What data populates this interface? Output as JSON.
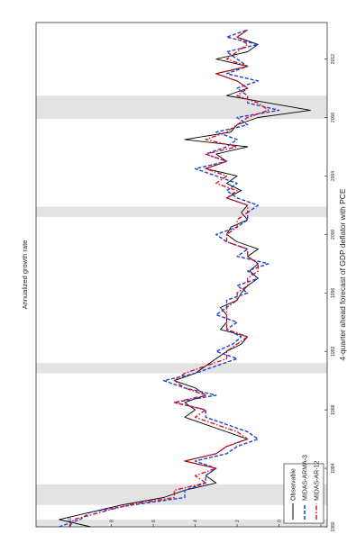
{
  "chart_data": {
    "type": "line",
    "title": "4-quarter ahead forecast of GDP deflator with PCE",
    "xlabel": "",
    "ylabel": "Annualized growth rate",
    "xlim": [
      1980,
      2014.5
    ],
    "ylim": [
      -2.3,
      11.6
    ],
    "x_ticks": [
      1980,
      1984,
      1988,
      1992,
      1996,
      2000,
      2004,
      2008,
      2012
    ],
    "y_ticks": [
      -2,
      0,
      2,
      4,
      6,
      8,
      10
    ],
    "grid": false,
    "legend": {
      "placement": "bottom-left",
      "orientation": "rotated"
    },
    "recessions": [
      [
        1980.0,
        1980.5
      ],
      [
        1981.5,
        1982.9
      ],
      [
        1990.5,
        1991.2
      ],
      [
        2001.2,
        2001.9
      ],
      [
        2007.9,
        2009.5
      ]
    ],
    "x": [
      1980.0,
      1980.5,
      1981.0,
      1981.5,
      1982.0,
      1982.5,
      1983.0,
      1983.5,
      1984.0,
      1984.5,
      1985.0,
      1985.5,
      1986.0,
      1986.5,
      1987.0,
      1987.5,
      1988.0,
      1988.5,
      1989.0,
      1989.5,
      1990.0,
      1990.5,
      1991.0,
      1991.5,
      1992.0,
      1992.5,
      1993.0,
      1993.5,
      1994.0,
      1994.5,
      1995.0,
      1995.5,
      1996.0,
      1996.5,
      1997.0,
      1997.5,
      1998.0,
      1998.5,
      1999.0,
      1999.5,
      2000.0,
      2000.5,
      2001.0,
      2001.5,
      2002.0,
      2002.5,
      2003.0,
      2003.5,
      2004.0,
      2004.5,
      2005.0,
      2005.5,
      2006.0,
      2006.5,
      2007.0,
      2007.5,
      2008.0,
      2008.5,
      2009.0,
      2009.5,
      2010.0,
      2010.5,
      2011.0,
      2011.5,
      2012.0,
      2012.5,
      2013.0,
      2013.5,
      2014.0
    ],
    "series": [
      {
        "name": "Observable",
        "color": "#000000",
        "dash": "solid",
        "values": [
          9.0,
          10.5,
          9.0,
          7.5,
          5.5,
          4.5,
          3.0,
          3.5,
          3.0,
          4.5,
          3.0,
          2.5,
          1.5,
          2.5,
          3.5,
          4.5,
          4.0,
          4.5,
          3.5,
          4.0,
          5.0,
          4.0,
          3.5,
          3.0,
          2.5,
          1.8,
          1.5,
          2.8,
          2.5,
          2.5,
          2.8,
          2.0,
          1.8,
          1.5,
          1.0,
          1.4,
          1.0,
          1.5,
          1.0,
          2.0,
          2.5,
          2.3,
          1.5,
          1.8,
          1.5,
          2.5,
          1.8,
          2.5,
          2.0,
          3.5,
          2.5,
          3.0,
          1.5,
          4.5,
          2.3,
          2.0,
          1.0,
          -1.5,
          0.5,
          2.5,
          1.5,
          2.0,
          3.0,
          1.5,
          3.0,
          1.5,
          1.0,
          2.0,
          1.5
        ]
      },
      {
        "name": "MIDAS-ARMA-3",
        "color": "#1f3fd6",
        "dash": "dash",
        "values": [
          10.5,
          9.5,
          9.0,
          7.0,
          4.5,
          4.5,
          3.5,
          3.5,
          3.0,
          4.0,
          2.5,
          2.0,
          1.0,
          1.5,
          2.5,
          3.5,
          3.5,
          5.0,
          3.0,
          4.5,
          5.5,
          4.0,
          3.0,
          2.0,
          3.0,
          2.2,
          1.8,
          2.5,
          2.0,
          3.0,
          2.5,
          2.5,
          1.5,
          2.0,
          1.0,
          1.5,
          0.5,
          2.0,
          1.5,
          2.5,
          3.0,
          2.0,
          1.5,
          1.5,
          1.0,
          2.0,
          2.5,
          2.0,
          3.0,
          4.0,
          2.5,
          3.5,
          2.5,
          2.0,
          3.0,
          1.5,
          2.0,
          0.0,
          1.5,
          1.5,
          2.0,
          1.0,
          2.5,
          1.5,
          2.0,
          2.5,
          1.0,
          2.5,
          1.5
        ]
      },
      {
        "name": "MIDAS-AR-12",
        "color": "#e0101e",
        "dash": "dashdot",
        "values": [
          10.0,
          9.8,
          8.5,
          7.2,
          5.0,
          5.0,
          3.5,
          4.0,
          3.0,
          4.5,
          3.0,
          2.5,
          1.5,
          2.0,
          3.0,
          4.0,
          3.5,
          5.0,
          3.5,
          4.5,
          5.0,
          4.5,
          3.5,
          2.5,
          2.5,
          2.0,
          1.5,
          2.5,
          2.5,
          2.5,
          2.5,
          2.0,
          2.0,
          1.5,
          1.5,
          1.0,
          1.0,
          1.5,
          1.5,
          2.5,
          2.5,
          2.0,
          2.0,
          1.5,
          1.5,
          2.5,
          2.0,
          3.0,
          2.5,
          3.5,
          2.5,
          3.5,
          2.0,
          3.5,
          2.5,
          2.0,
          1.5,
          0.5,
          1.0,
          2.0,
          1.5,
          2.0,
          3.0,
          1.5,
          2.5,
          2.0,
          1.5,
          2.0,
          1.5
        ]
      }
    ]
  }
}
